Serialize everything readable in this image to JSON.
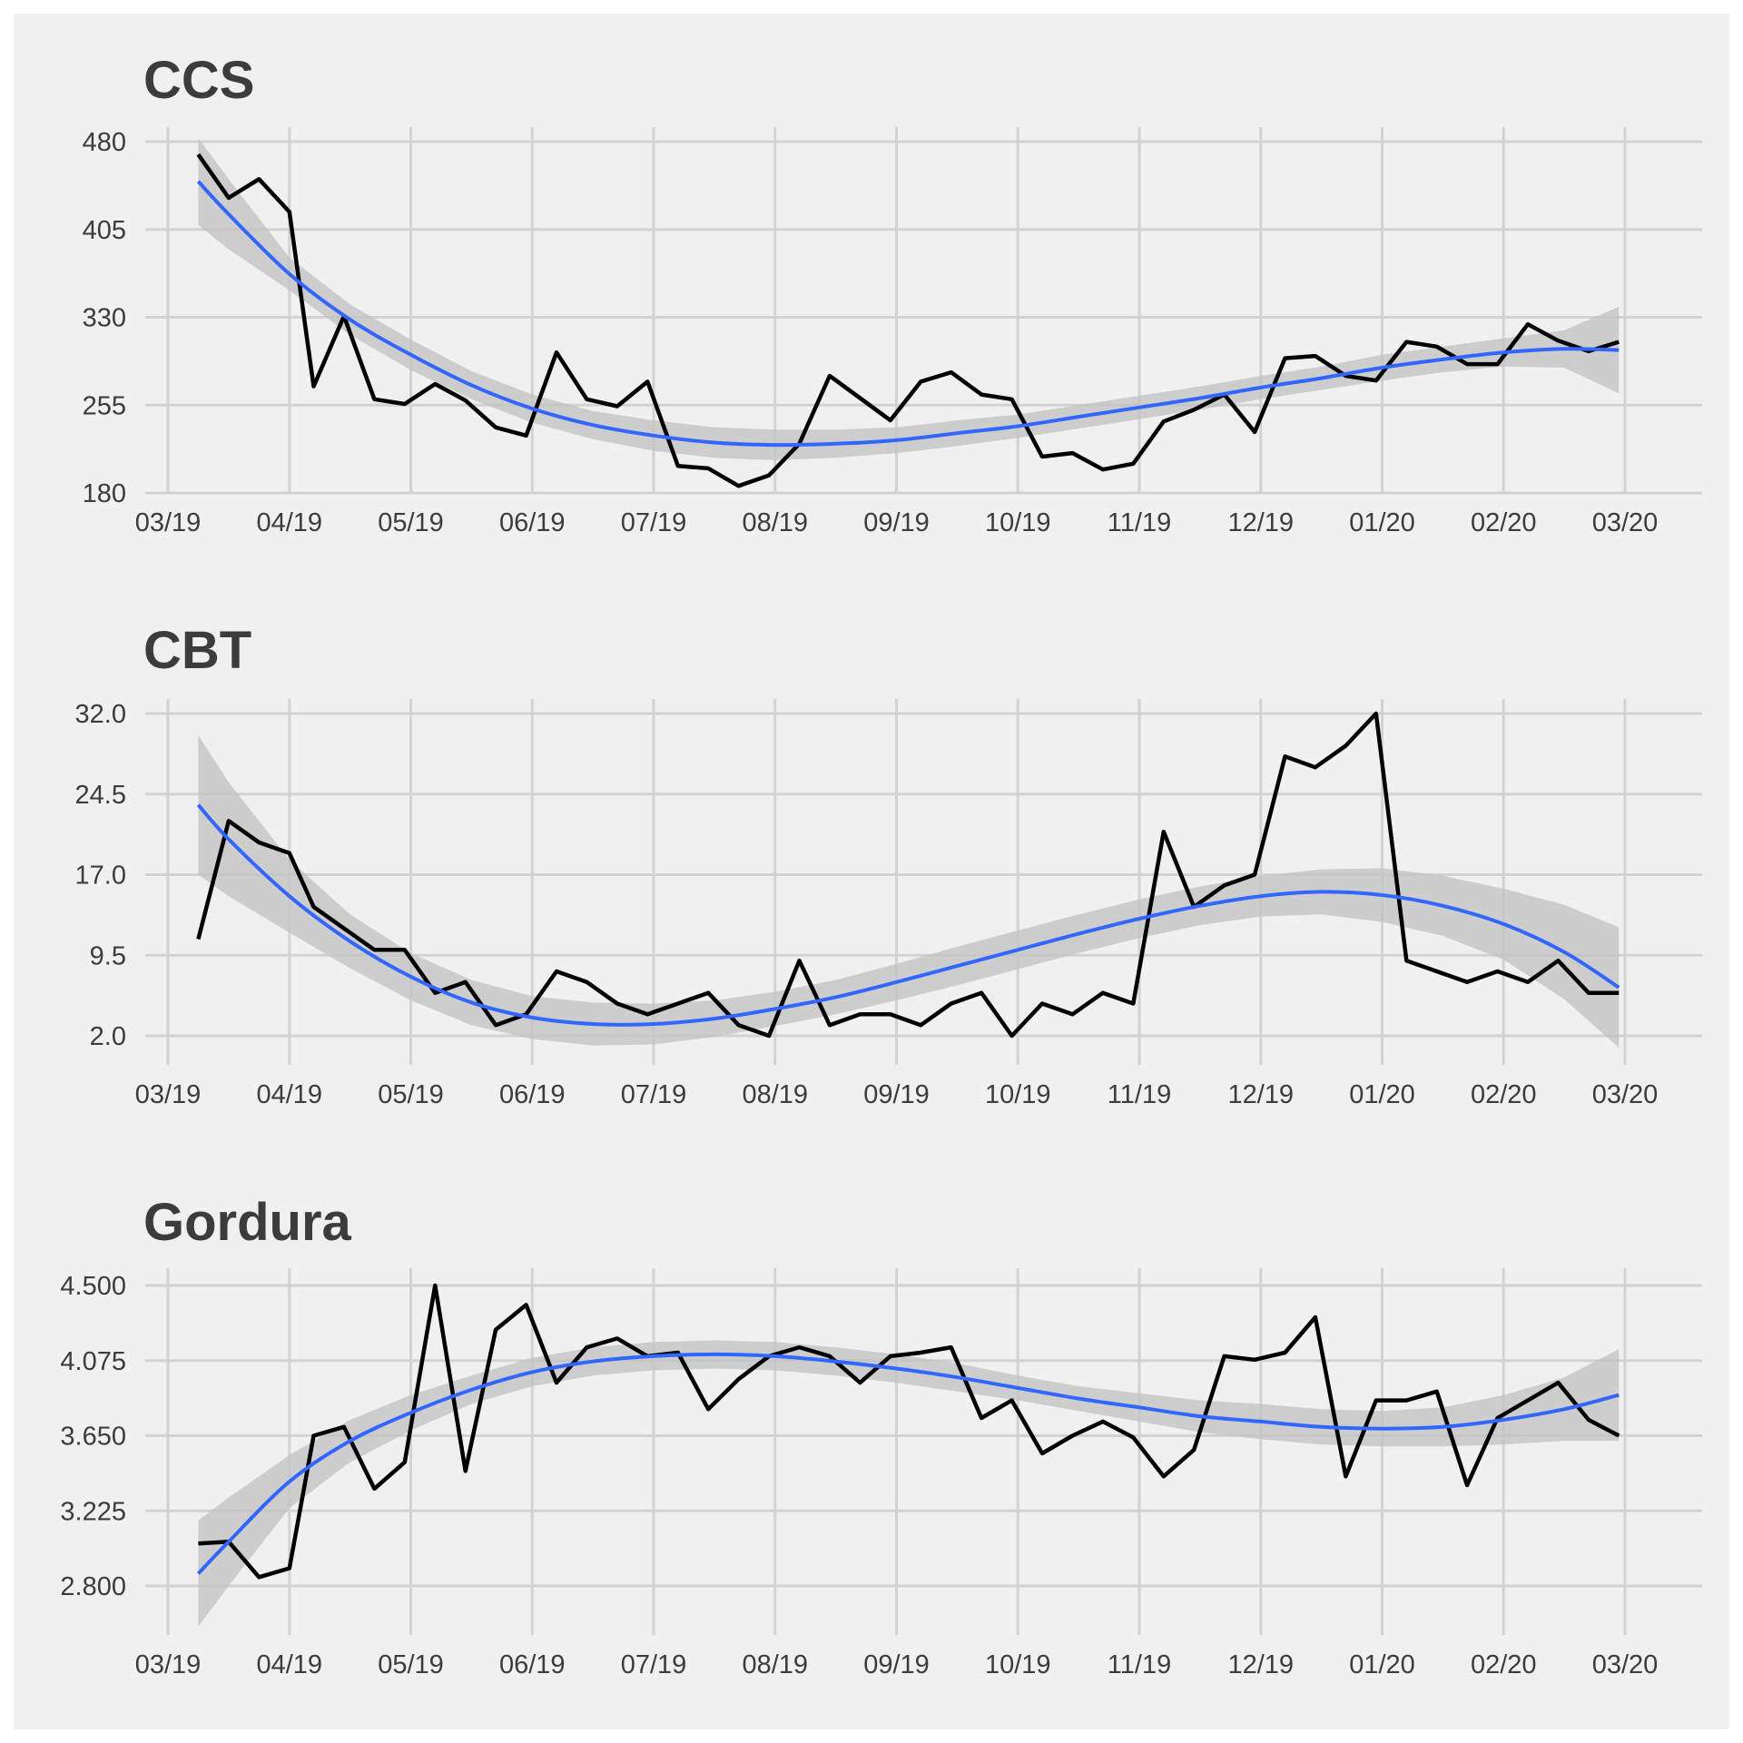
{
  "chart_data": [
    {
      "type": "line",
      "title": "CCS",
      "xlabel": "",
      "ylabel": "",
      "x_ticks": [
        "03/19",
        "04/19",
        "05/19",
        "06/19",
        "07/19",
        "08/19",
        "09/19",
        "10/19",
        "11/19",
        "12/19",
        "01/20",
        "02/20",
        "03/20"
      ],
      "y_ticks": [
        "180",
        "255",
        "330",
        "405",
        "480"
      ],
      "ylim": [
        168,
        484
      ],
      "grid": true,
      "legend": "none",
      "series": [
        {
          "role": "observed",
          "color": "#000000",
          "x": [
            0.25,
            0.5,
            0.75,
            1,
            1.2,
            1.45,
            1.7,
            1.95,
            2.2,
            2.45,
            2.7,
            2.95,
            3.2,
            3.45,
            3.7,
            3.95,
            4.2,
            4.45,
            4.7,
            4.95,
            5.2,
            5.45,
            5.7,
            5.95,
            6.2,
            6.45,
            6.7,
            6.95,
            7.2,
            7.45,
            7.7,
            7.95,
            8.2,
            8.45,
            8.7,
            8.95,
            9.2,
            9.45,
            9.7,
            9.95,
            10.2,
            10.45,
            10.7,
            10.95,
            11.2,
            11.45,
            11.7,
            11.95
          ],
          "y": [
            469,
            432,
            448,
            420,
            271,
            331,
            260,
            256,
            273,
            259,
            236,
            229,
            300,
            260,
            254,
            275,
            203,
            201,
            186,
            195,
            222,
            280,
            261,
            242,
            275,
            283,
            264,
            260,
            211,
            214,
            200,
            205,
            241,
            251,
            264,
            232,
            295,
            297,
            280,
            276,
            309,
            305,
            290,
            290,
            324,
            310,
            301,
            309
          ]
        },
        {
          "role": "trend",
          "color": "#3366ff",
          "x": [
            0.25,
            0.5,
            1,
            1.5,
            2,
            2.5,
            3,
            3.5,
            4,
            4.5,
            5,
            5.5,
            6,
            6.5,
            7,
            7.5,
            8,
            8.5,
            9,
            9.5,
            10,
            10.5,
            11,
            11.5,
            11.95
          ],
          "y": [
            446,
            418,
            367,
            328,
            298,
            272,
            252,
            238,
            229,
            223,
            221,
            222,
            225,
            231,
            237,
            245,
            253,
            261,
            270,
            278,
            287,
            294,
            300,
            303,
            302
          ],
          "ci_lower": [
            409,
            388,
            353,
            315,
            285,
            260,
            240,
            226,
            216,
            210,
            208,
            210,
            214,
            220,
            227,
            235,
            243,
            251,
            260,
            268,
            276,
            283,
            288,
            287,
            265
          ],
          "ci_upper": [
            483,
            448,
            381,
            341,
            311,
            284,
            264,
            250,
            242,
            236,
            234,
            234,
            236,
            242,
            247,
            255,
            263,
            271,
            280,
            288,
            298,
            305,
            312,
            319,
            339
          ]
        }
      ]
    },
    {
      "type": "line",
      "title": "CBT",
      "xlabel": "",
      "ylabel": "",
      "x_ticks": [
        "03/19",
        "04/19",
        "05/19",
        "06/19",
        "07/19",
        "08/19",
        "09/19",
        "10/19",
        "11/19",
        "12/19",
        "01/20",
        "02/20",
        "03/20"
      ],
      "y_ticks": [
        "32.0",
        "24.5",
        "17.0",
        "9.5",
        "2.0"
      ],
      "ylim": [
        -1,
        34
      ],
      "grid": true,
      "legend": "none",
      "series": [
        {
          "role": "observed",
          "color": "#000000",
          "x": [
            0.25,
            0.5,
            0.75,
            1,
            1.2,
            1.45,
            1.7,
            1.95,
            2.2,
            2.45,
            2.7,
            2.95,
            3.2,
            3.45,
            3.7,
            3.95,
            4.2,
            4.45,
            4.7,
            4.95,
            5.2,
            5.45,
            5.7,
            5.95,
            6.2,
            6.45,
            6.7,
            6.95,
            7.2,
            7.45,
            7.7,
            7.95,
            8.2,
            8.45,
            8.7,
            8.95,
            9.2,
            9.45,
            9.7,
            9.95,
            10.2,
            10.45,
            10.7,
            10.95,
            11.2,
            11.45,
            11.7,
            11.95
          ],
          "y": [
            11,
            22,
            20,
            19,
            14,
            12,
            10,
            10,
            6,
            7,
            3,
            4,
            8,
            7,
            5,
            4,
            5,
            6,
            3,
            2,
            9,
            3,
            4,
            4,
            3,
            5,
            6,
            2,
            5,
            4,
            6,
            5,
            21,
            14,
            16,
            17,
            28,
            27,
            29,
            32,
            9,
            8,
            7,
            8,
            7,
            9,
            6,
            6
          ],
          "note": ""
        },
        {
          "role": "trend",
          "color": "#3366ff",
          "x": [
            0.25,
            0.5,
            1,
            1.5,
            2,
            2.5,
            3,
            3.5,
            4,
            4.5,
            5,
            5.5,
            6,
            6.5,
            7,
            7.5,
            8,
            8.5,
            9,
            9.5,
            10,
            10.5,
            11,
            11.5,
            11.95
          ],
          "y": [
            23.5,
            20.3,
            15.0,
            10.8,
            7.5,
            5.1,
            3.7,
            3.1,
            3.1,
            3.6,
            4.5,
            5.6,
            7.0,
            8.5,
            10.0,
            11.5,
            12.9,
            14.1,
            15.0,
            15.4,
            15.1,
            14.1,
            12.4,
            9.8,
            6.5
          ],
          "ci_lower": [
            17.0,
            15.0,
            11.6,
            8.3,
            5.3,
            3.0,
            1.7,
            1.1,
            1.2,
            1.9,
            2.9,
            4.0,
            5.3,
            6.7,
            8.2,
            9.7,
            11.1,
            12.3,
            13.1,
            13.3,
            12.6,
            11.3,
            9.1,
            5.4,
            0.9
          ],
          "ci_upper": [
            30.0,
            25.6,
            18.4,
            13.3,
            9.7,
            7.2,
            5.7,
            5.1,
            5.0,
            5.3,
            6.1,
            7.2,
            8.7,
            10.3,
            11.8,
            13.3,
            14.7,
            15.9,
            16.9,
            17.5,
            17.6,
            16.9,
            15.7,
            14.2,
            12.1
          ]
        }
      ]
    },
    {
      "type": "line",
      "title": "Gordura",
      "xlabel": "",
      "ylabel": "",
      "x_ticks": [
        "03/19",
        "04/19",
        "05/19",
        "06/19",
        "07/19",
        "08/19",
        "09/19",
        "10/19",
        "11/19",
        "12/19",
        "01/20",
        "02/20",
        "03/20"
      ],
      "y_ticks": [
        "4.500",
        "4.075",
        "3.650",
        "3.225",
        "2.800"
      ],
      "ylim": [
        2.5,
        4.55
      ],
      "grid": true,
      "legend": "none",
      "series": [
        {
          "role": "observed",
          "color": "#000000",
          "x": [
            0.25,
            0.5,
            0.75,
            1,
            1.2,
            1.45,
            1.7,
            1.95,
            2.2,
            2.45,
            2.7,
            2.95,
            3.2,
            3.45,
            3.7,
            3.95,
            4.2,
            4.45,
            4.7,
            4.95,
            5.2,
            5.45,
            5.7,
            5.95,
            6.2,
            6.45,
            6.7,
            6.95,
            7.2,
            7.45,
            7.7,
            7.95,
            8.2,
            8.45,
            8.7,
            8.95,
            9.2,
            9.45,
            9.7,
            9.95,
            10.2,
            10.45,
            10.7,
            10.95,
            11.2,
            11.45,
            11.7,
            11.95
          ],
          "y": [
            3.04,
            3.05,
            2.85,
            2.9,
            3.65,
            3.7,
            3.35,
            3.5,
            4.5,
            3.45,
            4.25,
            4.39,
            3.95,
            4.15,
            4.2,
            4.1,
            4.12,
            3.8,
            3.97,
            4.1,
            4.15,
            4.1,
            3.95,
            4.1,
            4.12,
            4.15,
            3.75,
            3.85,
            3.55,
            3.65,
            3.73,
            3.64,
            3.42,
            3.57,
            4.1,
            4.08,
            4.12,
            4.32,
            3.42,
            3.85,
            3.85,
            3.9,
            3.37,
            3.75,
            3.85,
            3.95,
            3.74,
            3.65
          ]
        },
        {
          "role": "trend",
          "color": "#3366ff",
          "x": [
            0.25,
            0.5,
            1,
            1.5,
            2,
            2.5,
            3,
            3.5,
            4,
            4.5,
            5,
            5.5,
            6,
            6.5,
            7,
            7.5,
            8,
            8.5,
            9,
            9.5,
            10,
            10.5,
            11,
            11.5,
            11.95
          ],
          "y": [
            2.87,
            3.05,
            3.39,
            3.62,
            3.78,
            3.91,
            4.01,
            4.07,
            4.1,
            4.11,
            4.1,
            4.07,
            4.03,
            3.98,
            3.92,
            3.86,
            3.81,
            3.76,
            3.73,
            3.7,
            3.69,
            3.7,
            3.74,
            3.8,
            3.88
          ],
          "ci_lower": [
            2.57,
            2.8,
            3.24,
            3.5,
            3.68,
            3.83,
            3.93,
            3.99,
            4.02,
            4.03,
            4.02,
            3.99,
            3.95,
            3.9,
            3.85,
            3.79,
            3.73,
            3.67,
            3.63,
            3.6,
            3.59,
            3.59,
            3.6,
            3.62,
            3.62
          ],
          "ci_upper": [
            3.17,
            3.3,
            3.54,
            3.74,
            3.88,
            3.99,
            4.09,
            4.15,
            4.18,
            4.19,
            4.18,
            4.15,
            4.11,
            4.06,
            3.99,
            3.93,
            3.89,
            3.85,
            3.83,
            3.8,
            3.79,
            3.81,
            3.88,
            3.98,
            4.14
          ]
        }
      ]
    }
  ]
}
